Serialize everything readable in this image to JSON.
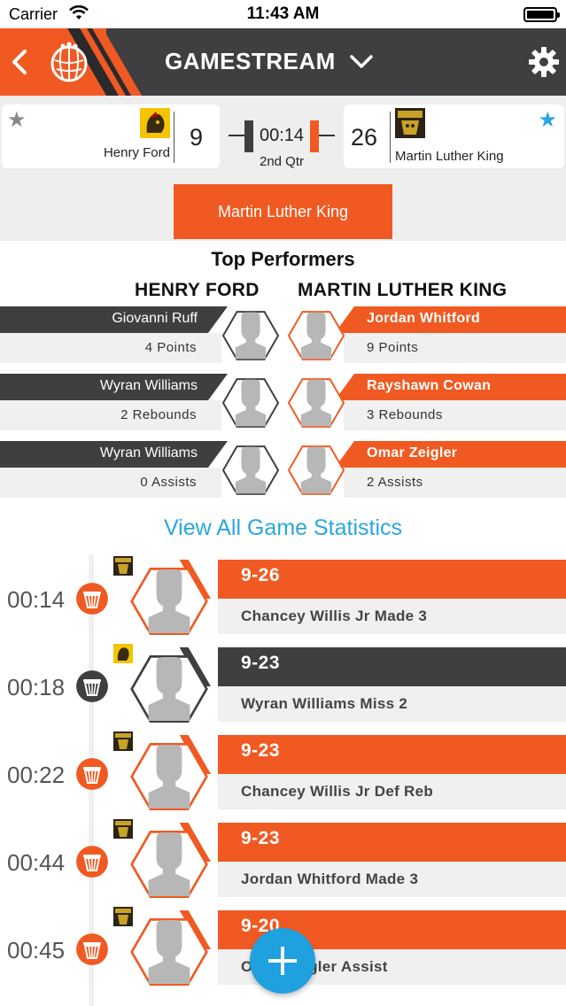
{
  "status_bar": {
    "carrier": "Carrier",
    "time": "11:43 AM"
  },
  "header": {
    "title": "GAMESTREAM"
  },
  "scoreboard": {
    "home": {
      "name": "Henry Ford",
      "score": "9"
    },
    "away": {
      "name": "Martin Luther King",
      "score": "26"
    },
    "clock": "00:14",
    "period": "2nd Qtr"
  },
  "team_tab": {
    "label": "Martin Luther King"
  },
  "top_performers": {
    "title": "Top Performers",
    "home_team": "HENRY FORD",
    "away_team": "MARTIN LUTHER KING",
    "rows": [
      {
        "home_player": "Giovanni Ruff",
        "home_stat": "4 Points",
        "away_player": "Jordan Whitford",
        "away_stat": "9 Points"
      },
      {
        "home_player": "Wyran Williams",
        "home_stat": "2 Rebounds",
        "away_player": "Rayshawn Cowan",
        "away_stat": "3 Rebounds"
      },
      {
        "home_player": "Wyran Williams",
        "home_stat": "0 Assists",
        "away_player": "Omar Zeigler",
        "away_stat": "2 Assists"
      }
    ]
  },
  "view_all_label": "View All Game Statistics",
  "plays": [
    {
      "time": "00:14",
      "score": "9-26",
      "description": "Chancey Willis Jr Made 3",
      "team": "away"
    },
    {
      "time": "00:18",
      "score": "9-23",
      "description": "Wyran Williams Miss 2",
      "team": "home"
    },
    {
      "time": "00:22",
      "score": "9-23",
      "description": "Chancey Willis Jr Def Reb",
      "team": "away"
    },
    {
      "time": "00:44",
      "score": "9-23",
      "description": "Jordan Whitford Made 3",
      "team": "away"
    },
    {
      "time": "00:45",
      "score": "9-20",
      "description": "Omar Zeigler Assist",
      "team": "away"
    }
  ],
  "colors": {
    "orange": "#f05a22",
    "dark": "#3f3f41",
    "blue": "#2aa6e0"
  },
  "icons": {
    "back": "back-chevron-icon",
    "logo": "basketball-logo-icon",
    "dropdown": "chevron-down-icon",
    "settings": "gear-icon",
    "favorite": "star-icon",
    "play_type": "basket-icon",
    "add": "plus-icon"
  }
}
